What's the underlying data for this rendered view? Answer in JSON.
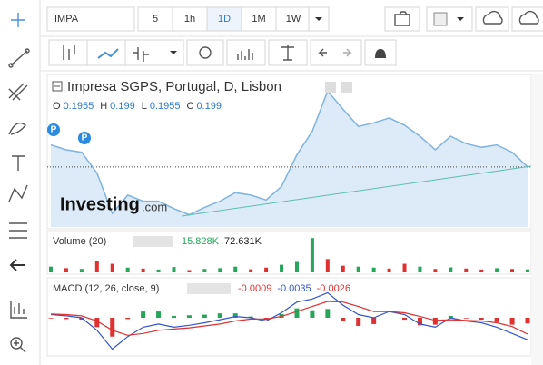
{
  "toolbar": {
    "symbol": "IMPA",
    "intervals": [
      "5",
      "1h",
      "1D",
      "1M",
      "1W"
    ],
    "active_interval": 2
  },
  "legend": {
    "title": "Impresa SGPS, Portugal, D, Lisbon",
    "ohlc": [
      {
        "label": "O",
        "value": 0.1955
      },
      {
        "label": "H",
        "value": 0.199
      },
      {
        "label": "L",
        "value": 0.1955
      },
      {
        "label": "C",
        "value": 0.199
      }
    ]
  },
  "logo": {
    "brand": "Investing",
    "suffix": ".com"
  },
  "markers": [
    "P",
    "P"
  ],
  "chart_data": [
    {
      "type": "area",
      "color": "#7fb3e0",
      "fill": "#dcebf7",
      "ylim": [
        0.15,
        0.27
      ],
      "values": [
        0.217,
        0.213,
        0.211,
        0.194,
        0.161,
        0.176,
        0.171,
        0.171,
        0.165,
        0.16,
        0.166,
        0.171,
        0.178,
        0.176,
        0.172,
        0.183,
        0.209,
        0.228,
        0.261,
        0.246,
        0.232,
        0.235,
        0.239,
        0.233,
        0.224,
        0.213,
        0.224,
        0.218,
        0.215,
        0.217,
        0.211,
        0.199
      ]
    },
    {
      "type": "bar",
      "title": "Volume (20)",
      "legend_values": [
        "15.828K",
        "72.631K"
      ],
      "legend_colors": [
        "#26a65b",
        "#222222"
      ],
      "ylim": [
        0,
        200000
      ],
      "values": [
        30000,
        22000,
        18000,
        60000,
        45000,
        25000,
        20000,
        15000,
        28000,
        12000,
        18000,
        22000,
        30000,
        16000,
        25000,
        40000,
        55000,
        180000,
        70000,
        35000,
        30000,
        25000,
        20000,
        45000,
        30000,
        18000,
        26000,
        20000,
        15000,
        22000,
        18000,
        15828
      ],
      "colors": [
        "#26a65b",
        "#e03030",
        "#26a65b",
        "#e03030",
        "#e03030",
        "#26a65b",
        "#e03030",
        "#26a65b",
        "#26a65b",
        "#e03030",
        "#26a65b",
        "#26a65b",
        "#26a65b",
        "#e03030",
        "#e03030",
        "#26a65b",
        "#26a65b",
        "#26a65b",
        "#e03030",
        "#e03030",
        "#26a65b",
        "#26a65b",
        "#e03030",
        "#e03030",
        "#26a65b",
        "#e03030",
        "#26a65b",
        "#e03030",
        "#e03030",
        "#26a65b",
        "#e03030",
        "#26a65b"
      ]
    },
    {
      "type": "macd",
      "title": "MACD (12, 26, close, 9)",
      "ylim": [
        -0.0055,
        0.0055
      ],
      "color_up": "#26a65b",
      "color_down": "#e03030",
      "series": [
        {
          "color": "#e03030",
          "values": [
            -0.0001,
            -0.0002,
            -0.0003,
            -0.0015,
            -0.003,
            -0.0002,
            0.001,
            0.001,
            0.0003,
            0.0004,
            0.0005,
            0.0007,
            0.0007,
            0.0002,
            -0.0003,
            0.0006,
            0.0015,
            0.0012,
            0.0014,
            -0.0005,
            -0.0013,
            -0.001,
            0.0,
            -0.0003,
            -0.0012,
            -0.0011,
            0.0003,
            -0.0001,
            -0.0003,
            -0.0007,
            -0.0011,
            -0.0009
          ]
        },
        {
          "color": "#3355cc",
          "values": [
            0.0005,
            0.0003,
            0.0,
            -0.002,
            -0.005,
            -0.003,
            -0.0015,
            -0.001,
            -0.0015,
            -0.0012,
            -0.0008,
            -0.0003,
            0.0002,
            0.0,
            -0.0005,
            0.0008,
            0.0025,
            0.003,
            0.004,
            0.002,
            0.0005,
            0.0,
            0.001,
            0.0005,
            -0.001,
            -0.0015,
            0.0,
            -0.0005,
            -0.0008,
            -0.0015,
            -0.0025,
            -0.0035
          ]
        },
        {
          "color": "#e03030",
          "values": [
            0.0006,
            0.0005,
            0.0003,
            -0.0005,
            -0.002,
            -0.0028,
            -0.0025,
            -0.002,
            -0.0018,
            -0.0016,
            -0.0013,
            -0.001,
            -0.0005,
            -0.0002,
            -0.0002,
            0.0002,
            0.001,
            0.0018,
            0.0026,
            0.0025,
            0.0018,
            0.001,
            0.001,
            0.0008,
            0.0002,
            -0.0004,
            -0.0003,
            -0.0004,
            -0.0005,
            -0.0008,
            -0.0014,
            -0.0026
          ]
        }
      ]
    }
  ]
}
